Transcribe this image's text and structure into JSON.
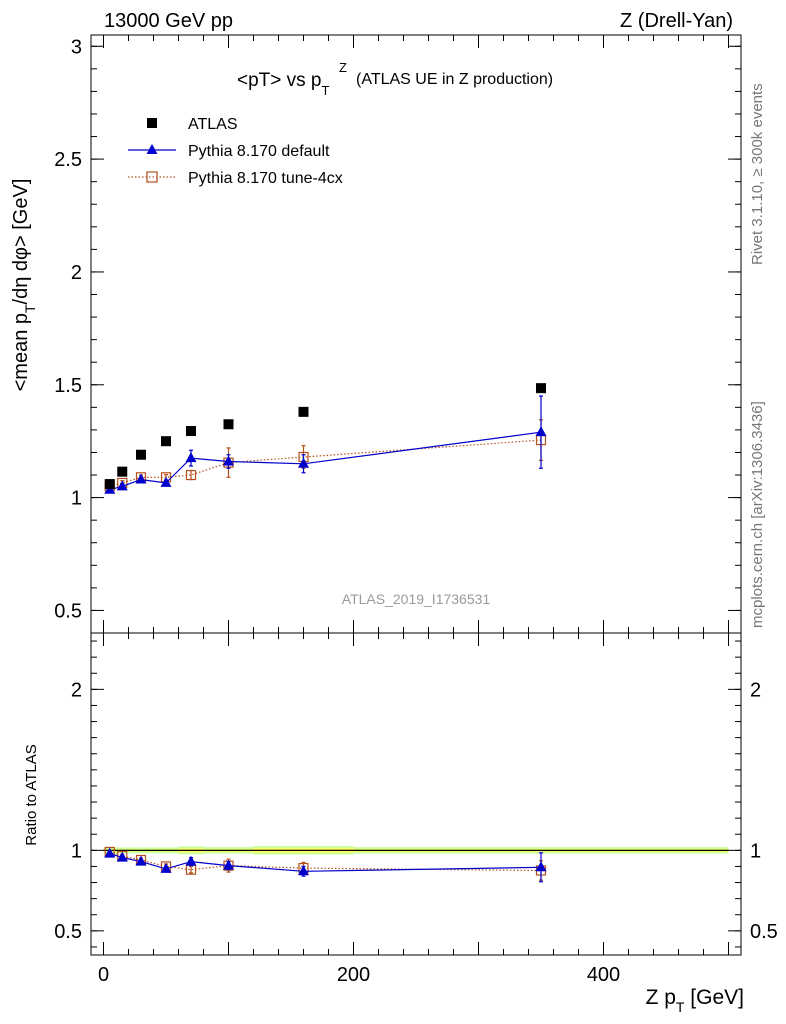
{
  "header": {
    "energy_label": "13000 GeV pp",
    "process_label": "Z (Drell-Yan)"
  },
  "side_labels": {
    "rivet": "Rivet 3.1.10, ≥ 300k events",
    "mcplots": "mcplots.cern.ch [arXiv:1306.3436]"
  },
  "colors": {
    "data": "#000000",
    "default": "#0000cc",
    "tune": "#b5501c",
    "band_inner": "#ffff66",
    "band_outer": "#ccff99",
    "watermark": "#999999"
  },
  "chart_data": [
    {
      "type": "scatter",
      "title_main": "<pT> vs p",
      "title_sub_T": "T",
      "title_sup_Z": "Z",
      "title_suffix": "(ATLAS UE in Z production)",
      "ylabel": "<mean p_T/dη dφ> [GeV]",
      "ylabel_parts": {
        "a": "<mean p",
        "sub": "T",
        "b": "/dη dφ> [GeV]"
      },
      "watermark": "ATLAS_2019_I1736531",
      "xlim": [
        -10,
        510
      ],
      "ylim": [
        0.4,
        3.05
      ],
      "yticks": [
        0.5,
        1,
        1.5,
        2,
        2.5,
        3
      ],
      "ytick_labels": [
        "0.5",
        "1",
        "1.5",
        "2",
        "2.5",
        "3"
      ],
      "legend_position": "top-left",
      "series": [
        {
          "name": "ATLAS",
          "style": "data",
          "x": [
            5,
            15,
            30,
            50,
            70,
            100,
            160,
            350
          ],
          "y": [
            1.06,
            1.115,
            1.19,
            1.25,
            1.295,
            1.325,
            1.38,
            1.485
          ],
          "err": [
            0.005,
            0.005,
            0.005,
            0.005,
            0.005,
            0.005,
            0.005,
            0.01
          ]
        },
        {
          "name": "Pythia 8.170 default",
          "style": "default",
          "x": [
            5,
            15,
            30,
            50,
            70,
            100,
            160,
            350
          ],
          "y": [
            1.035,
            1.05,
            1.08,
            1.065,
            1.175,
            1.16,
            1.15,
            1.29
          ],
          "err": [
            0.01,
            0.01,
            0.01,
            0.012,
            0.035,
            0.03,
            0.04,
            0.16
          ]
        },
        {
          "name": "Pythia 8.170 tune-4cx",
          "style": "tune",
          "x": [
            5,
            15,
            30,
            50,
            70,
            100,
            160,
            350
          ],
          "y": [
            1.05,
            1.065,
            1.09,
            1.09,
            1.1,
            1.155,
            1.18,
            1.255
          ],
          "err": [
            0.01,
            0.01,
            0.01,
            0.012,
            0.02,
            0.065,
            0.05,
            0.09
          ]
        }
      ]
    },
    {
      "type": "scatter",
      "ylabel": "Ratio to ATLAS",
      "xlabel_parts": {
        "a": "Z p",
        "sub": "T",
        "b": " [GeV]"
      },
      "xlim": [
        -10,
        510
      ],
      "ylim": [
        0.35,
        2.35
      ],
      "yticks": [
        0.5,
        1,
        2
      ],
      "ytick_labels": [
        "0.5",
        "1",
        "2"
      ],
      "xticks": [
        0,
        200,
        400
      ],
      "xtick_labels": [
        "0",
        "200",
        "400"
      ],
      "reference_line": 1,
      "band_segments": [
        {
          "x0": 0,
          "x1": 60,
          "err": 0.006
        },
        {
          "x0": 60,
          "x1": 80,
          "err": 0.012
        },
        {
          "x0": 80,
          "x1": 120,
          "err": 0.008
        },
        {
          "x0": 120,
          "x1": 200,
          "err": 0.014
        },
        {
          "x0": 200,
          "x1": 500,
          "err": 0.008
        }
      ],
      "series": [
        {
          "name": "Pythia 8.170 default",
          "style": "default",
          "x": [
            5,
            15,
            30,
            50,
            70,
            100,
            160,
            350
          ],
          "y": [
            0.98,
            0.955,
            0.93,
            0.885,
            0.93,
            0.905,
            0.87,
            0.895
          ],
          "err": [
            0.01,
            0.012,
            0.012,
            0.015,
            0.025,
            0.025,
            0.03,
            0.09
          ]
        },
        {
          "name": "Pythia 8.170 tune-4cx",
          "style": "tune",
          "x": [
            5,
            15,
            30,
            50,
            70,
            100,
            160,
            350
          ],
          "y": [
            0.99,
            0.965,
            0.94,
            0.9,
            0.88,
            0.905,
            0.89,
            0.875
          ],
          "err": [
            0.01,
            0.012,
            0.012,
            0.015,
            0.02,
            0.04,
            0.035,
            0.06
          ]
        }
      ]
    }
  ]
}
